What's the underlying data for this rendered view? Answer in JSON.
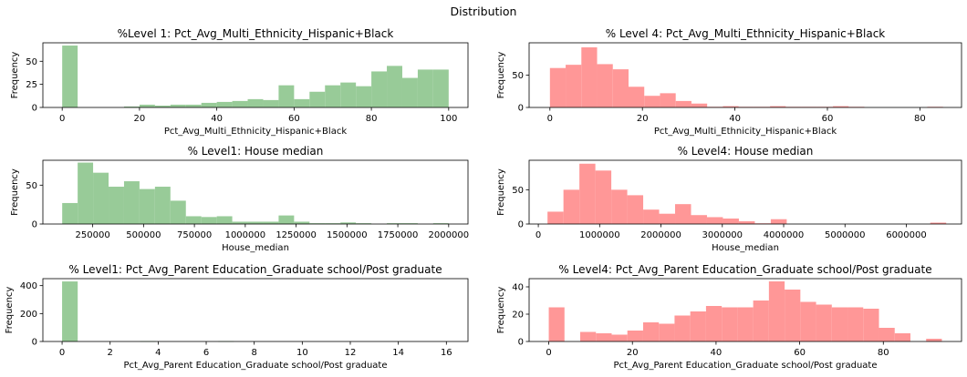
{
  "figure": {
    "title": "Distribution"
  },
  "chart_data": [
    {
      "type": "bar",
      "title": "%Level 1: Pct_Avg_Multi_Ethnicity_Hispanic+Black",
      "xlabel": "Pct_Avg_Multi_Ethnicity_Hispanic+Black",
      "ylabel": "Frequency",
      "color": "#98cb98",
      "xlim": [
        -5,
        105
      ],
      "ylim": [
        0,
        70
      ],
      "xticks": [
        0,
        20,
        40,
        60,
        80,
        100
      ],
      "xtick_labels": [
        "0",
        "20",
        "40",
        "60",
        "80",
        "100"
      ],
      "yticks": [
        0,
        25,
        50
      ],
      "ytick_labels": [
        "0",
        "25",
        "50"
      ],
      "bin_edges": [
        0,
        4,
        8,
        12,
        16,
        20,
        24,
        28,
        32,
        36,
        40,
        44,
        48,
        52,
        56,
        60,
        64,
        68,
        72,
        76,
        80,
        84,
        88,
        92,
        96,
        100
      ],
      "values": [
        67,
        0,
        0,
        0,
        1,
        3,
        2,
        3,
        3,
        5,
        6,
        7,
        9,
        8,
        24,
        9,
        17,
        24,
        27,
        23,
        39,
        45,
        32,
        41,
        41
      ]
    },
    {
      "type": "bar",
      "title": "% Level 4: Pct_Avg_Multi_Ethnicity_Hispanic+Black",
      "xlabel": "Pct_Avg_Multi_Ethnicity_Hispanic+Black",
      "ylabel": "Frequency",
      "color": "#ff9797",
      "xlim": [
        -4.5,
        89
      ],
      "ylim": [
        0,
        100
      ],
      "xticks": [
        0,
        20,
        40,
        60,
        80
      ],
      "xtick_labels": [
        "0",
        "20",
        "40",
        "60",
        "80"
      ],
      "yticks": [
        0,
        50
      ],
      "ytick_labels": [
        "0",
        "50"
      ],
      "bin_edges": [
        0,
        3.4,
        6.8,
        10.2,
        13.6,
        17,
        20.4,
        23.8,
        27.2,
        30.6,
        34,
        37.4,
        40.8,
        44.2,
        47.6,
        51,
        54.4,
        57.8,
        61.2,
        64.6,
        68,
        71.4,
        74.8,
        78.2,
        81.6,
        85
      ],
      "values": [
        61,
        66,
        93,
        67,
        59,
        32,
        18,
        22,
        10,
        6,
        1,
        2,
        1,
        1,
        2,
        1,
        1,
        1,
        2,
        1,
        0,
        0,
        0,
        0,
        1
      ]
    },
    {
      "type": "bar",
      "title": "% Level1: House median",
      "xlabel": "House_median",
      "ylabel": "Frequency",
      "color": "#98cb98",
      "xlim": [
        5000,
        2095000
      ],
      "ylim": [
        0,
        82
      ],
      "xticks": [
        250000,
        500000,
        750000,
        1000000,
        1250000,
        1500000,
        1750000,
        2000000
      ],
      "xtick_labels": [
        "250000",
        "500000",
        "750000",
        "1000000",
        "1250000",
        "1500000",
        "1750000",
        "2000000"
      ],
      "yticks": [
        0,
        50
      ],
      "ytick_labels": [
        "0",
        "50"
      ],
      "bin_edges": [
        100000,
        176000,
        252000,
        328000,
        404000,
        480000,
        556000,
        632000,
        708000,
        784000,
        860000,
        936000,
        1012000,
        1088000,
        1164000,
        1240000,
        1316000,
        1392000,
        1468000,
        1544000,
        1620000,
        1696000,
        1772000,
        1848000,
        1924000,
        2000000
      ],
      "values": [
        27,
        79,
        66,
        48,
        55,
        45,
        48,
        30,
        10,
        9,
        10,
        3,
        3,
        3,
        11,
        3,
        1,
        1,
        2,
        1,
        0,
        1,
        1,
        0,
        1
      ]
    },
    {
      "type": "bar",
      "title": "% Level4: House median",
      "xlabel": "House_median",
      "ylabel": "Frequency",
      "color": "#ff9797",
      "xlim": [
        -150000,
        6900000
      ],
      "ylim": [
        0,
        93
      ],
      "xticks": [
        0,
        1000000,
        2000000,
        3000000,
        4000000,
        5000000,
        6000000
      ],
      "xtick_labels": [
        "0",
        "1000000",
        "2000000",
        "3000000",
        "4000000",
        "5000000",
        "6000000"
      ],
      "yticks": [
        0,
        50
      ],
      "ytick_labels": [
        "0",
        "50"
      ],
      "bin_edges": [
        150000,
        410000,
        670000,
        930000,
        1190000,
        1450000,
        1710000,
        1970000,
        2230000,
        2490000,
        2750000,
        3010000,
        3270000,
        3530000,
        3790000,
        4050000,
        4310000,
        4570000,
        4830000,
        5090000,
        5350000,
        5610000,
        5870000,
        6130000,
        6390000,
        6650000
      ],
      "values": [
        18,
        50,
        88,
        78,
        50,
        42,
        21,
        15,
        29,
        13,
        10,
        8,
        4,
        1,
        7,
        0,
        0,
        0,
        0,
        0,
        0,
        0,
        0,
        0,
        2
      ]
    },
    {
      "type": "bar",
      "title": "% Level1: Pct_Avg_Parent Education_Graduate school/Post graduate",
      "xlabel": "Pct_Avg_Parent Education_Graduate school/Post graduate",
      "ylabel": "Frequency",
      "color": "#98cb98",
      "xlim": [
        -0.8,
        16.9
      ],
      "ylim": [
        0,
        450
      ],
      "xticks": [
        0,
        2,
        4,
        6,
        8,
        10,
        12,
        14,
        16
      ],
      "xtick_labels": [
        "0",
        "2",
        "4",
        "6",
        "8",
        "10",
        "12",
        "14",
        "16"
      ],
      "yticks": [
        0,
        200,
        400
      ],
      "ytick_labels": [
        "0",
        "200",
        "400"
      ],
      "bin_edges": [
        0,
        0.65,
        1.3,
        1.95,
        2.6,
        3.25,
        3.9,
        4.55,
        5.2,
        5.85,
        6.5,
        7.15,
        7.8,
        8.45,
        9.1,
        9.75,
        10.4,
        11.05,
        11.7,
        12.35,
        13,
        13.65,
        14.3,
        14.95,
        15.6,
        16.25
      ],
      "values": [
        430,
        0,
        0,
        0,
        0,
        2,
        0,
        0,
        0,
        0,
        2,
        0,
        0,
        0,
        0,
        0,
        0,
        0,
        0,
        0,
        0,
        0,
        0,
        0,
        0
      ]
    },
    {
      "type": "bar",
      "title": "% Level4: Pct_Avg_Parent Education_Graduate school/Post graduate",
      "xlabel": "Pct_Avg_Parent Education_Graduate school/Post graduate",
      "ylabel": "Frequency",
      "color": "#ff9797",
      "xlim": [
        -4.7,
        98.7
      ],
      "ylim": [
        0,
        46
      ],
      "xticks": [
        0,
        20,
        40,
        60,
        80
      ],
      "xtick_labels": [
        "0",
        "20",
        "40",
        "60",
        "80"
      ],
      "yticks": [
        0,
        20,
        40
      ],
      "ytick_labels": [
        "0",
        "20",
        "40"
      ],
      "bin_edges": [
        0,
        3.76,
        7.52,
        11.28,
        15.04,
        18.8,
        22.56,
        26.32,
        30.08,
        33.84,
        37.6,
        41.36,
        45.12,
        48.88,
        52.64,
        56.4,
        60.16,
        63.92,
        67.68,
        71.44,
        75.2,
        78.96,
        82.72,
        86.48,
        90.24,
        94
      ],
      "values": [
        25,
        0,
        7,
        6,
        5,
        8,
        14,
        13,
        19,
        22,
        26,
        25,
        25,
        30,
        44,
        38,
        29,
        27,
        25,
        25,
        24,
        10,
        6,
        0,
        2
      ]
    }
  ]
}
